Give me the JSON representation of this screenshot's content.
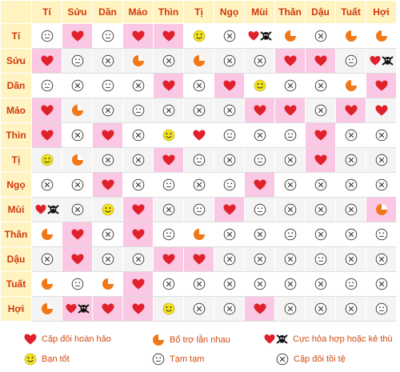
{
  "headers": [
    "Tí",
    "Sửu",
    "Dần",
    "Máo",
    "Thìn",
    "Tị",
    "Ngọ",
    "Mùi",
    "Thân",
    "Dậu",
    "Tuất",
    "Hợi"
  ],
  "rows": [
    {
      "label": "Tí",
      "cells": [
        "neutral",
        "heart",
        "neutral",
        "heart",
        "heart",
        "smile",
        "x",
        "heart_skull",
        "quarter",
        "x",
        "quarter",
        "quarter"
      ],
      "pink": [
        1,
        3,
        4
      ]
    },
    {
      "label": "Sửu",
      "cells": [
        "heart",
        "neutral",
        "x",
        "quarter",
        "x",
        "quarter",
        "x",
        "x",
        "heart",
        "heart",
        "neutral",
        "heart_skull"
      ],
      "pink": [
        0,
        8,
        9
      ]
    },
    {
      "label": "Dần",
      "cells": [
        "neutral",
        "x",
        "neutral",
        "x",
        "heart",
        "x",
        "heart",
        "smile",
        "x",
        "x",
        "quarter",
        "heart"
      ],
      "pink": [
        4,
        6,
        11
      ]
    },
    {
      "label": "Máo",
      "cells": [
        "heart",
        "quarter",
        "x",
        "neutral",
        "x",
        "x",
        "x",
        "heart",
        "heart",
        "x",
        "heart",
        "heart"
      ],
      "pink": [
        0,
        7,
        8,
        10
      ]
    },
    {
      "label": "Thìn",
      "cells": [
        "heart",
        "x",
        "heart",
        "x",
        "smile",
        "heart",
        "neutral",
        "x",
        "neutral",
        "heart",
        "x",
        "x"
      ],
      "pink": [
        0,
        2,
        9
      ]
    },
    {
      "label": "Tị",
      "cells": [
        "smile",
        "quarter",
        "x",
        "x",
        "heart",
        "neutral",
        "x",
        "neutral",
        "x",
        "heart",
        "x",
        "x"
      ],
      "pink": [
        4,
        9
      ]
    },
    {
      "label": "Ngọ",
      "cells": [
        "x",
        "x",
        "heart",
        "x",
        "neutral",
        "x",
        "neutral",
        "heart",
        "x",
        "x",
        "x",
        "x"
      ],
      "pink": [
        2,
        7
      ]
    },
    {
      "label": "Mùi",
      "cells": [
        "heart_skull",
        "x",
        "smile",
        "heart",
        "x",
        "neutral",
        "heart",
        "neutral",
        "x",
        "x",
        "x",
        "quarter"
      ],
      "pink": [
        3,
        6,
        11
      ]
    },
    {
      "label": "Thân",
      "cells": [
        "quarter",
        "heart",
        "x",
        "heart",
        "neutral",
        "quarter",
        "x",
        "x",
        "neutral",
        "x",
        "x",
        "neutral"
      ],
      "pink": [
        1,
        3
      ]
    },
    {
      "label": "Dậu",
      "cells": [
        "x",
        "heart",
        "x",
        "x",
        "heart",
        "heart",
        "x",
        "x",
        "x",
        "neutral",
        "x",
        "x"
      ],
      "pink": [
        1,
        4,
        5
      ]
    },
    {
      "label": "Tuất",
      "cells": [
        "quarter",
        "neutral",
        "quarter",
        "heart",
        "x",
        "x",
        "x",
        "x",
        "x",
        "x",
        "neutral",
        "x"
      ],
      "pink": [
        3
      ]
    },
    {
      "label": "Hợi",
      "cells": [
        "quarter",
        "heart_skull",
        "heart",
        "heart",
        "smile",
        "x",
        "x",
        "heart",
        "x",
        "x",
        "x",
        "neutral"
      ],
      "pink": [
        1,
        2,
        3,
        7
      ]
    }
  ],
  "legend": {
    "heart": "Cặp đôi hoàn hảo",
    "quarter": "Bổ trợ lẫn nhau",
    "heart_skull": "Cực hỏa hợp hoặc kẻ thù",
    "smile": "Bạn tốt",
    "neutral": "Tạm tạm",
    "x": "Cặp đôi tồi tệ"
  },
  "colors": {
    "header_bg": "#fff3c2",
    "header_text": "#d0390b",
    "pink": "#fac8e4",
    "heart": "#e0202a",
    "quarter": "#f07818",
    "smile": "#f3e21e"
  }
}
